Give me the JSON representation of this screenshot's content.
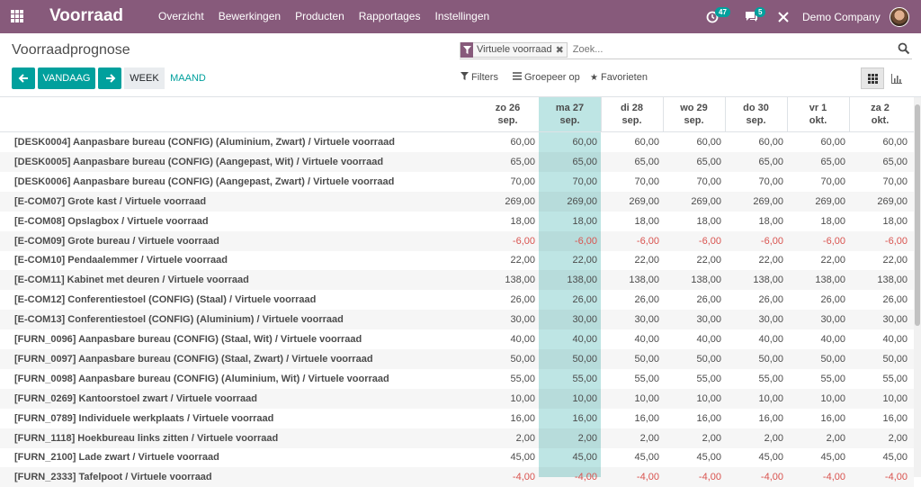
{
  "navbar": {
    "app_name": "Voorraad",
    "menu": [
      "Overzicht",
      "Bewerkingen",
      "Producten",
      "Rapportages",
      "Instellingen"
    ],
    "activity_count": "47",
    "messages_count": "5",
    "company": "Demo Company"
  },
  "control_panel": {
    "title": "Voorraadprognose",
    "search": {
      "facet_value": "Virtuele voorraad",
      "placeholder": "Zoek..."
    },
    "buttons": {
      "today": "VANDAAG",
      "week": "WEEK",
      "month": "MAAND"
    },
    "filters": {
      "filters": "Filters",
      "group_by": "Groepeer op",
      "favorites": "Favorieten"
    }
  },
  "grid": {
    "columns": [
      {
        "day": "zo 26",
        "month": "sep."
      },
      {
        "day": "ma 27",
        "month": "sep."
      },
      {
        "day": "di 28",
        "month": "sep."
      },
      {
        "day": "wo 29",
        "month": "sep."
      },
      {
        "day": "do 30",
        "month": "sep."
      },
      {
        "day": "vr 1",
        "month": "okt."
      },
      {
        "day": "za 2",
        "month": "okt."
      }
    ],
    "rows": [
      {
        "label": "[DESK0004] Aanpasbare bureau (CONFIG) (Aluminium, Zwart) / Virtuele voorraad",
        "value": "60,00"
      },
      {
        "label": "[DESK0005] Aanpasbare bureau (CONFIG) (Aangepast, Wit) / Virtuele voorraad",
        "value": "65,00"
      },
      {
        "label": "[DESK0006] Aanpasbare bureau (CONFIG) (Aangepast, Zwart) / Virtuele voorraad",
        "value": "70,00"
      },
      {
        "label": "[E-COM07] Grote kast / Virtuele voorraad",
        "value": "269,00"
      },
      {
        "label": "[E-COM08] Opslagbox / Virtuele voorraad",
        "value": "18,00"
      },
      {
        "label": "[E-COM09] Grote bureau / Virtuele voorraad",
        "value": "-6,00"
      },
      {
        "label": "[E-COM10] Pendaalemmer / Virtuele voorraad",
        "value": "22,00"
      },
      {
        "label": "[E-COM11] Kabinet met deuren / Virtuele voorraad",
        "value": "138,00"
      },
      {
        "label": "[E-COM12] Conferentiestoel (CONFIG) (Staal) / Virtuele voorraad",
        "value": "26,00"
      },
      {
        "label": "[E-COM13] Conferentiestoel (CONFIG) (Aluminium) / Virtuele voorraad",
        "value": "30,00"
      },
      {
        "label": "[FURN_0096] Aanpasbare bureau (CONFIG) (Staal, Wit) / Virtuele voorraad",
        "value": "40,00"
      },
      {
        "label": "[FURN_0097] Aanpasbare bureau (CONFIG) (Staal, Zwart) / Virtuele voorraad",
        "value": "50,00"
      },
      {
        "label": "[FURN_0098] Aanpasbare bureau (CONFIG) (Aluminium, Wit) / Virtuele voorraad",
        "value": "55,00"
      },
      {
        "label": "[FURN_0269] Kantoorstoel zwart / Virtuele voorraad",
        "value": "10,00"
      },
      {
        "label": "[FURN_0789] Individuele werkplaats / Virtuele voorraad",
        "value": "16,00"
      },
      {
        "label": "[FURN_1118] Hoekbureau links zitten / Virtuele voorraad",
        "value": "2,00"
      },
      {
        "label": "[FURN_2100] Lade zwart / Virtuele voorraad",
        "value": "45,00"
      },
      {
        "label": "[FURN_2333] Tafelpoot / Virtuele voorraad",
        "value": "-4,00"
      }
    ]
  },
  "colors": {
    "brand": "#875a7b",
    "accent": "#00a09d",
    "highlight": "#bee5e4",
    "negative": "#d9534f"
  }
}
